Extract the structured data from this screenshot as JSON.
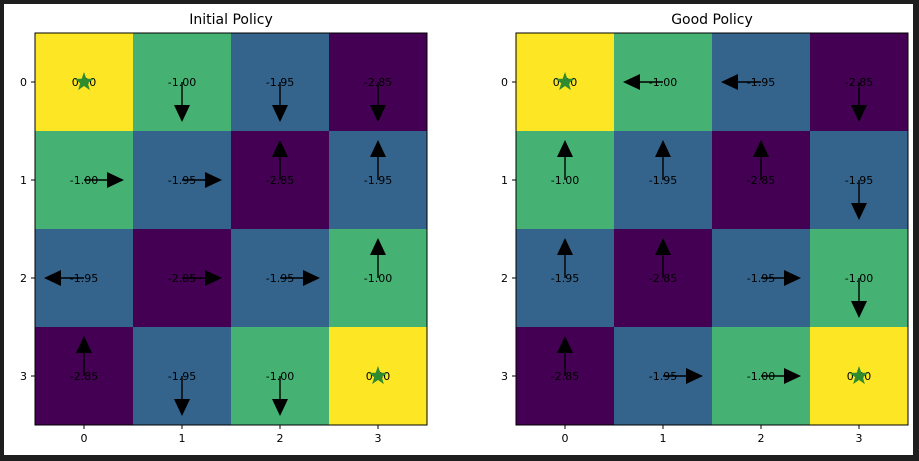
{
  "chart_data": [
    {
      "type": "heatmap",
      "title": "Initial Policy",
      "x_ticks": [
        "0",
        "1",
        "2",
        "3"
      ],
      "y_ticks": [
        "0",
        "1",
        "2",
        "3"
      ],
      "xlim": [
        -0.5,
        3.5
      ],
      "ylim": [
        3.5,
        -0.5
      ],
      "grid": false,
      "colormap": "viridis",
      "value_labels": [
        [
          "0.00",
          "-1.00",
          "-1.95",
          "-2.85"
        ],
        [
          "-1.00",
          "-1.95",
          "-2.85",
          "-1.95"
        ],
        [
          "-1.95",
          "-2.85",
          "-1.95",
          "-1.00"
        ],
        [
          "-2.85",
          "-1.95",
          "-1.00",
          "0.00"
        ]
      ],
      "values": [
        [
          0.0,
          -1.0,
          -1.95,
          -2.85
        ],
        [
          -1.0,
          -1.95,
          -2.85,
          -1.95
        ],
        [
          -1.95,
          -2.85,
          -1.95,
          -1.0
        ],
        [
          -2.85,
          -1.95,
          -1.0,
          0.0
        ]
      ],
      "policy": [
        [
          "none",
          "down",
          "down",
          "down"
        ],
        [
          "right",
          "right",
          "up",
          "up"
        ],
        [
          "left",
          "right",
          "right",
          "up"
        ],
        [
          "up",
          "down",
          "down",
          "none"
        ]
      ],
      "terminal_marker": "star",
      "terminals": [
        [
          0,
          0
        ],
        [
          3,
          3
        ]
      ],
      "colors": {
        "marker": "#2e8b2e",
        "arrow": "#000000"
      }
    },
    {
      "type": "heatmap",
      "title": "Good Policy",
      "x_ticks": [
        "0",
        "1",
        "2",
        "3"
      ],
      "y_ticks": [
        "0",
        "1",
        "2",
        "3"
      ],
      "xlim": [
        -0.5,
        3.5
      ],
      "ylim": [
        3.5,
        -0.5
      ],
      "grid": false,
      "colormap": "viridis",
      "value_labels": [
        [
          "0.00",
          "-1.00",
          "-1.95",
          "-2.85"
        ],
        [
          "-1.00",
          "-1.95",
          "-2.85",
          "-1.95"
        ],
        [
          "-1.95",
          "-2.85",
          "-1.95",
          "-1.00"
        ],
        [
          "-2.85",
          "-1.95",
          "-1.00",
          "0.00"
        ]
      ],
      "values": [
        [
          0.0,
          -1.0,
          -1.95,
          -2.85
        ],
        [
          -1.0,
          -1.95,
          -2.85,
          -1.95
        ],
        [
          -1.95,
          -2.85,
          -1.95,
          -1.0
        ],
        [
          -2.85,
          -1.95,
          -1.0,
          0.0
        ]
      ],
      "policy": [
        [
          "none",
          "left",
          "left",
          "down"
        ],
        [
          "up",
          "up",
          "up",
          "down"
        ],
        [
          "up",
          "up",
          "right",
          "down"
        ],
        [
          "up",
          "right",
          "right",
          "none"
        ]
      ],
      "terminal_marker": "star",
      "terminals": [
        [
          0,
          0
        ],
        [
          3,
          3
        ]
      ],
      "colors": {
        "marker": "#2e8b2e",
        "arrow": "#000000"
      }
    }
  ]
}
